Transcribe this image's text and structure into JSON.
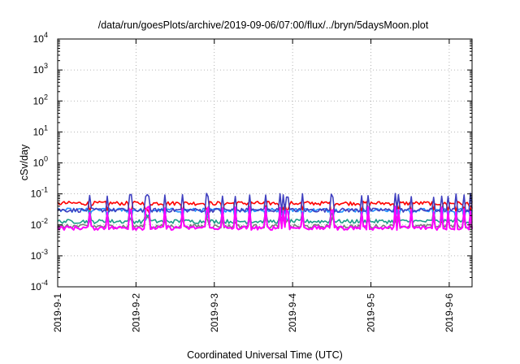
{
  "chart_data": {
    "type": "line",
    "title": "/data/run/goesPlots/archive/2019-09-06/07:00/flux/../bryn/5daysMoon.plot",
    "xlabel": "Coordinated Universal Time (UTC)",
    "ylabel": "cSv/day",
    "yscale": "log",
    "ylim": [
      0.0001,
      10000
    ],
    "y_ticks": [
      {
        "base": "10",
        "exp": "-4"
      },
      {
        "base": "10",
        "exp": "-3"
      },
      {
        "base": "10",
        "exp": "-2"
      },
      {
        "base": "10",
        "exp": "-1"
      },
      {
        "base": "10",
        "exp": "0"
      },
      {
        "base": "10",
        "exp": "1"
      },
      {
        "base": "10",
        "exp": "2"
      },
      {
        "base": "10",
        "exp": "3"
      },
      {
        "base": "10",
        "exp": "4"
      }
    ],
    "xlim": [
      "2019-09-01T00:00",
      "2019-09-06T07:00"
    ],
    "x_ticks": [
      "2019-9-1",
      "2019-9-2",
      "2019-9-3",
      "2019-9-4",
      "2019-9-5",
      "2019-9-6"
    ],
    "grid": true,
    "series": [
      {
        "color": "#1f9e89",
        "typical": 0.013,
        "spike_max": 0.03
      },
      {
        "color": "#7a7a7a",
        "typical": 0.009,
        "spike_max": 0.02
      },
      {
        "color": "#4040c0",
        "typical": 0.03,
        "spike_max": 0.1
      },
      {
        "color": "#1e90ff",
        "typical": 0.03,
        "spike_max": 0.05
      },
      {
        "color": "#ff0000",
        "typical": 0.05,
        "spike_max": 0.07
      },
      {
        "color": "#ff00ff",
        "typical": 0.008,
        "spike_max": 0.04
      }
    ]
  }
}
